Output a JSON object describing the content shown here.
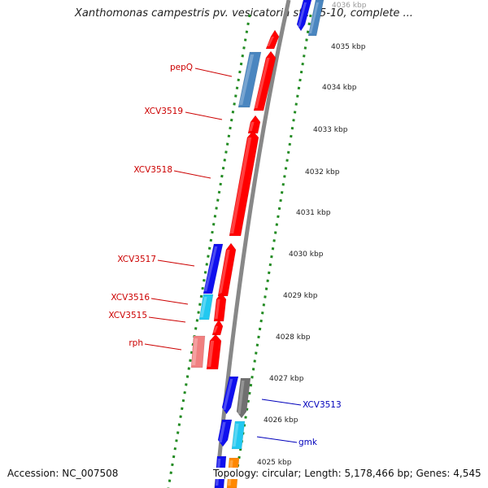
{
  "title": "Xanthomonas campestris pv. vesicatoria str. 85-10, complete ...",
  "footer": {
    "accession": "Accession: NC_007508",
    "stats": "Topology: circular; Length: 5,178,466 bp; Genes: 4,545"
  },
  "ticks": [
    "4036 kbp",
    "4035 kbp",
    "4034 kbp",
    "4033 kbp",
    "4032 kbp",
    "4031 kbp",
    "4030 kbp",
    "4029 kbp",
    "4028 kbp",
    "4027 kbp",
    "4026 kbp",
    "4025 kbp"
  ],
  "gene_labels": [
    {
      "text": "pepQ",
      "color": "#cc0000"
    },
    {
      "text": "XCV3519",
      "color": "#cc0000"
    },
    {
      "text": "XCV3518",
      "color": "#cc0000"
    },
    {
      "text": "XCV3517",
      "color": "#cc0000"
    },
    {
      "text": "XCV3516",
      "color": "#cc0000"
    },
    {
      "text": "XCV3515",
      "color": "#cc0000"
    },
    {
      "text": "rph",
      "color": "#cc0000"
    },
    {
      "text": "XCV3513",
      "color": "#0000bb"
    },
    {
      "text": "gmk",
      "color": "#0000bb"
    }
  ],
  "colors": {
    "cds_red": "#ff0000",
    "cds_blue": "#1010ee",
    "cds_steel": "#4a86c0",
    "cds_cyan": "#22c8f0",
    "cds_pink": "#f08080",
    "cds_gray": "#707070",
    "cds_orange": "#ff8800",
    "backbone": "#888888",
    "ticks_dotted": "#228B22"
  }
}
